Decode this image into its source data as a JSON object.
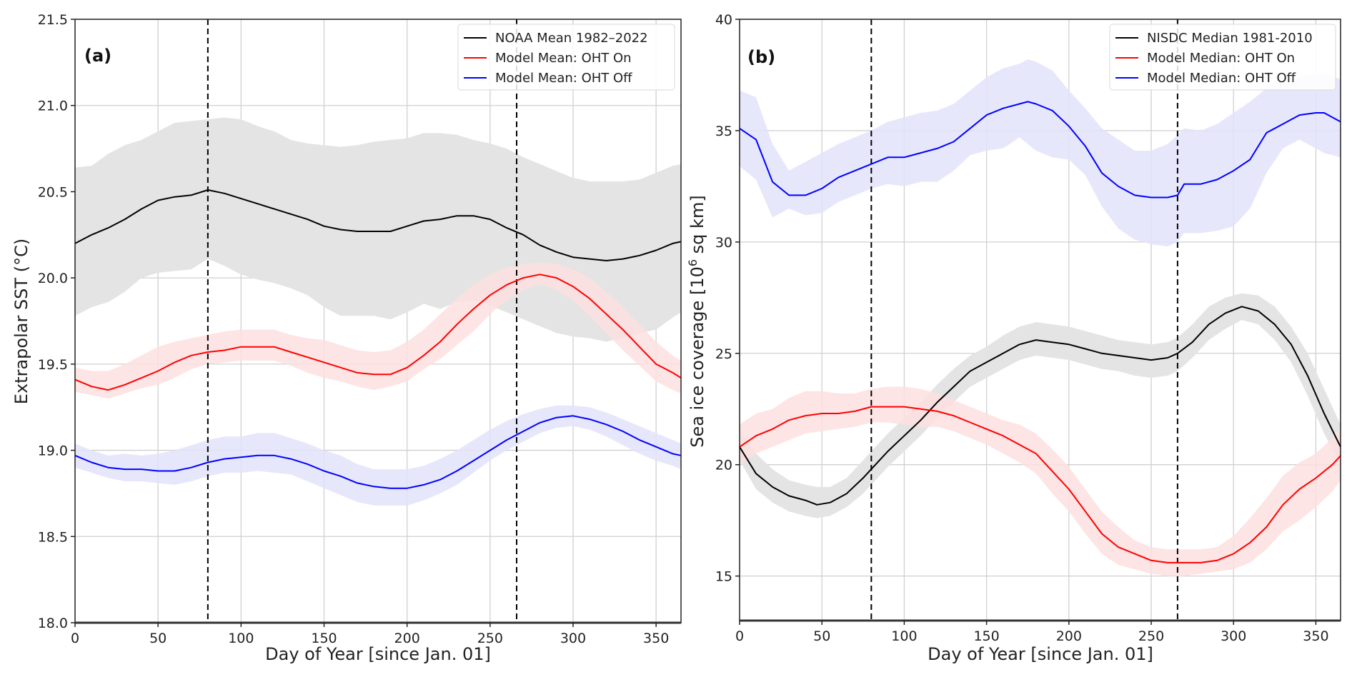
{
  "chart_data": [
    {
      "type": "line",
      "panel_label": "(a)",
      "title": "",
      "xlabel": "Day of Year [since Jan. 01]",
      "ylabel": "Extrapolar SST (°C)",
      "xlim": [
        0,
        365
      ],
      "ylim": [
        18.0,
        21.5
      ],
      "xticks": [
        0,
        50,
        100,
        150,
        200,
        250,
        300,
        350
      ],
      "yticks": [
        18.0,
        18.5,
        19.0,
        19.5,
        20.0,
        20.5,
        21.0,
        21.5
      ],
      "ytick_labels": [
        "18.0",
        "18.5",
        "19.0",
        "19.5",
        "20.0",
        "20.5",
        "21.0",
        "21.5"
      ],
      "grid": true,
      "vlines": [
        80,
        266
      ],
      "legend_position": "top-right",
      "series": [
        {
          "name": "NOAA Mean 1982–2022",
          "color": "#000000",
          "band_color": "#e4e4e4",
          "x": [
            0,
            10,
            20,
            30,
            40,
            50,
            60,
            70,
            80,
            90,
            100,
            110,
            120,
            130,
            140,
            150,
            160,
            170,
            180,
            190,
            200,
            210,
            220,
            230,
            240,
            250,
            260,
            270,
            280,
            290,
            300,
            310,
            320,
            330,
            340,
            350,
            360,
            365
          ],
          "values": [
            20.2,
            20.25,
            20.29,
            20.34,
            20.4,
            20.45,
            20.47,
            20.48,
            20.51,
            20.49,
            20.46,
            20.43,
            20.4,
            20.37,
            20.34,
            20.3,
            20.28,
            20.27,
            20.27,
            20.27,
            20.3,
            20.33,
            20.34,
            20.36,
            20.36,
            20.34,
            20.29,
            20.25,
            20.19,
            20.15,
            20.12,
            20.11,
            20.1,
            20.11,
            20.13,
            20.16,
            20.2,
            20.21
          ],
          "upper": [
            20.64,
            20.65,
            20.72,
            20.77,
            20.8,
            20.85,
            20.9,
            20.91,
            20.92,
            20.93,
            20.92,
            20.88,
            20.85,
            20.8,
            20.78,
            20.77,
            20.76,
            20.77,
            20.79,
            20.8,
            20.81,
            20.84,
            20.84,
            20.83,
            20.8,
            20.78,
            20.75,
            20.7,
            20.66,
            20.62,
            20.58,
            20.56,
            20.56,
            20.56,
            20.57,
            20.61,
            20.65,
            20.66
          ],
          "lower": [
            19.78,
            19.83,
            19.86,
            19.92,
            20.0,
            20.03,
            20.04,
            20.05,
            20.11,
            20.07,
            20.02,
            19.99,
            19.97,
            19.94,
            19.9,
            19.83,
            19.78,
            19.78,
            19.78,
            19.76,
            19.8,
            19.85,
            19.82,
            19.86,
            19.87,
            19.84,
            19.8,
            19.76,
            19.72,
            19.68,
            19.66,
            19.65,
            19.63,
            19.65,
            19.68,
            19.7,
            19.77,
            19.8
          ]
        },
        {
          "name": "Model Mean: OHT On",
          "color": "#ff0000",
          "band_color": "#fde0e0",
          "x": [
            0,
            10,
            20,
            30,
            40,
            50,
            60,
            70,
            80,
            90,
            100,
            110,
            120,
            130,
            140,
            150,
            160,
            170,
            180,
            190,
            200,
            210,
            220,
            230,
            240,
            250,
            260,
            270,
            280,
            290,
            300,
            310,
            320,
            330,
            340,
            350,
            360,
            365
          ],
          "values": [
            19.41,
            19.37,
            19.35,
            19.38,
            19.42,
            19.46,
            19.51,
            19.55,
            19.57,
            19.58,
            19.6,
            19.6,
            19.6,
            19.57,
            19.54,
            19.51,
            19.48,
            19.45,
            19.44,
            19.44,
            19.48,
            19.55,
            19.63,
            19.73,
            19.82,
            19.9,
            19.96,
            20.0,
            20.02,
            20.0,
            19.95,
            19.88,
            19.79,
            19.7,
            19.6,
            19.5,
            19.45,
            19.42
          ],
          "upper": [
            19.48,
            19.46,
            19.46,
            19.5,
            19.55,
            19.6,
            19.63,
            19.65,
            19.67,
            19.69,
            19.7,
            19.7,
            19.7,
            19.67,
            19.65,
            19.64,
            19.61,
            19.58,
            19.57,
            19.58,
            19.63,
            19.7,
            19.79,
            19.88,
            19.96,
            20.02,
            20.06,
            20.08,
            20.09,
            20.08,
            20.05,
            20.0,
            19.92,
            19.83,
            19.73,
            19.63,
            19.55,
            19.52
          ],
          "lower": [
            19.34,
            19.32,
            19.3,
            19.33,
            19.36,
            19.38,
            19.42,
            19.47,
            19.5,
            19.51,
            19.52,
            19.52,
            19.52,
            19.49,
            19.45,
            19.42,
            19.4,
            19.37,
            19.35,
            19.37,
            19.4,
            19.47,
            19.53,
            19.61,
            19.69,
            19.79,
            19.87,
            19.93,
            19.96,
            19.93,
            19.87,
            19.78,
            19.68,
            19.58,
            19.49,
            19.4,
            19.35,
            19.33
          ]
        },
        {
          "name": "Model Mean: OHT Off",
          "color": "#0000ff",
          "band_color": "#e3e3fc",
          "x": [
            0,
            10,
            20,
            30,
            40,
            50,
            60,
            70,
            80,
            90,
            100,
            110,
            120,
            130,
            140,
            150,
            160,
            170,
            180,
            190,
            200,
            210,
            220,
            230,
            240,
            250,
            260,
            270,
            280,
            290,
            300,
            310,
            320,
            330,
            340,
            350,
            360,
            365
          ],
          "values": [
            18.97,
            18.93,
            18.9,
            18.89,
            18.89,
            18.88,
            18.88,
            18.9,
            18.93,
            18.95,
            18.96,
            18.97,
            18.97,
            18.95,
            18.92,
            18.88,
            18.85,
            18.81,
            18.79,
            18.78,
            18.78,
            18.8,
            18.83,
            18.88,
            18.94,
            19.0,
            19.06,
            19.11,
            19.16,
            19.19,
            19.2,
            19.18,
            19.15,
            19.11,
            19.06,
            19.02,
            18.98,
            18.97
          ],
          "upper": [
            19.04,
            19.0,
            18.97,
            18.98,
            18.97,
            18.98,
            19.0,
            19.03,
            19.06,
            19.08,
            19.08,
            19.1,
            19.1,
            19.07,
            19.04,
            19.0,
            18.97,
            18.92,
            18.89,
            18.89,
            18.89,
            18.91,
            18.95,
            19.0,
            19.06,
            19.12,
            19.17,
            19.21,
            19.24,
            19.26,
            19.26,
            19.25,
            19.22,
            19.18,
            19.14,
            19.1,
            19.06,
            19.04
          ],
          "lower": [
            18.9,
            18.87,
            18.84,
            18.82,
            18.82,
            18.81,
            18.8,
            18.82,
            18.85,
            18.87,
            18.87,
            18.88,
            18.87,
            18.86,
            18.82,
            18.78,
            18.74,
            18.7,
            18.68,
            18.68,
            18.68,
            18.71,
            18.75,
            18.8,
            18.87,
            18.94,
            19.0,
            19.05,
            19.1,
            19.13,
            19.14,
            19.12,
            19.08,
            19.03,
            18.98,
            18.94,
            18.91,
            18.89
          ]
        }
      ]
    },
    {
      "type": "line",
      "panel_label": "(b)",
      "title": "",
      "xlabel": "Day of Year [since Jan. 01]",
      "ylabel_main": "Sea ice coverage [10",
      "ylabel_sup": "6",
      "ylabel_tail": " sq km]",
      "xlim": [
        0,
        365
      ],
      "ylim": [
        13,
        40
      ],
      "xticks": [
        0,
        50,
        100,
        150,
        200,
        250,
        300,
        350
      ],
      "yticks": [
        15,
        20,
        25,
        30,
        35,
        40
      ],
      "ytick_labels": [
        "15",
        "20",
        "25",
        "30",
        "35",
        "40"
      ],
      "grid": true,
      "vlines": [
        80,
        266
      ],
      "legend_position": "top-right",
      "series": [
        {
          "name": "NISDC Median 1981-2010",
          "color": "#000000",
          "band_color": "#e4e4e4",
          "x": [
            0,
            10,
            20,
            30,
            40,
            47,
            55,
            65,
            75,
            80,
            90,
            100,
            110,
            120,
            130,
            140,
            150,
            160,
            170,
            180,
            190,
            200,
            210,
            220,
            230,
            240,
            250,
            260,
            266,
            275,
            285,
            295,
            305,
            315,
            325,
            335,
            345,
            355,
            365
          ],
          "values": [
            20.8,
            19.6,
            19.0,
            18.6,
            18.4,
            18.2,
            18.3,
            18.7,
            19.4,
            19.8,
            20.6,
            21.3,
            22.0,
            22.8,
            23.5,
            24.2,
            24.6,
            25.0,
            25.4,
            25.6,
            25.5,
            25.4,
            25.2,
            25.0,
            24.9,
            24.8,
            24.7,
            24.8,
            25.0,
            25.5,
            26.3,
            26.8,
            27.1,
            26.9,
            26.3,
            25.4,
            24.0,
            22.3,
            20.8
          ],
          "upper": [
            21.5,
            20.5,
            19.8,
            19.3,
            19.1,
            19.0,
            19.0,
            19.4,
            20.2,
            20.6,
            21.4,
            22.1,
            22.8,
            23.6,
            24.3,
            24.9,
            25.3,
            25.8,
            26.2,
            26.4,
            26.3,
            26.2,
            26.0,
            25.8,
            25.6,
            25.5,
            25.4,
            25.5,
            25.7,
            26.3,
            27.1,
            27.5,
            27.7,
            27.6,
            27.1,
            26.2,
            25.0,
            23.4,
            21.8
          ],
          "lower": [
            20.2,
            18.9,
            18.3,
            17.9,
            17.7,
            17.6,
            17.7,
            18.1,
            18.7,
            19.1,
            19.9,
            20.6,
            21.3,
            22.1,
            22.8,
            23.5,
            23.9,
            24.3,
            24.7,
            24.9,
            24.8,
            24.7,
            24.5,
            24.3,
            24.2,
            24.0,
            23.9,
            24.0,
            24.2,
            24.8,
            25.6,
            26.1,
            26.5,
            26.3,
            25.6,
            24.6,
            23.1,
            21.4,
            20.0
          ]
        },
        {
          "name": "Model Median: OHT On",
          "color": "#ff0000",
          "band_color": "#fde0e0",
          "x": [
            0,
            10,
            20,
            30,
            40,
            50,
            60,
            70,
            80,
            90,
            100,
            110,
            120,
            130,
            140,
            150,
            160,
            170,
            180,
            190,
            200,
            210,
            220,
            230,
            240,
            250,
            260,
            270,
            280,
            290,
            300,
            310,
            320,
            330,
            340,
            350,
            360,
            365
          ],
          "values": [
            20.8,
            21.3,
            21.6,
            22.0,
            22.2,
            22.3,
            22.3,
            22.4,
            22.6,
            22.6,
            22.6,
            22.5,
            22.4,
            22.2,
            21.9,
            21.6,
            21.3,
            20.9,
            20.5,
            19.7,
            18.9,
            17.9,
            16.9,
            16.3,
            16.0,
            15.7,
            15.6,
            15.6,
            15.6,
            15.7,
            16.0,
            16.5,
            17.2,
            18.2,
            18.9,
            19.4,
            20.0,
            20.4
          ],
          "upper": [
            21.8,
            22.3,
            22.5,
            23.0,
            23.3,
            23.3,
            23.2,
            23.2,
            23.4,
            23.5,
            23.5,
            23.4,
            23.2,
            22.9,
            22.6,
            22.3,
            22.0,
            21.8,
            21.4,
            20.7,
            19.9,
            18.9,
            17.9,
            17.2,
            16.6,
            16.3,
            16.2,
            16.2,
            16.2,
            16.3,
            16.8,
            17.6,
            18.5,
            19.5,
            20.1,
            20.5,
            21.2,
            21.7
          ],
          "lower": [
            20.0,
            20.5,
            20.8,
            21.1,
            21.4,
            21.5,
            21.6,
            21.7,
            21.9,
            21.9,
            21.8,
            21.7,
            21.7,
            21.5,
            21.2,
            20.9,
            20.5,
            20.1,
            19.6,
            18.7,
            17.9,
            16.9,
            16.0,
            15.5,
            15.3,
            15.1,
            15.0,
            15.0,
            15.1,
            15.2,
            15.3,
            15.6,
            16.2,
            17.0,
            17.5,
            18.1,
            18.8,
            19.3
          ]
        },
        {
          "name": "Model Median: OHT Off",
          "color": "#0000ff",
          "band_color": "#e3e3fc",
          "x": [
            0,
            10,
            20,
            30,
            40,
            50,
            60,
            70,
            80,
            90,
            100,
            110,
            120,
            130,
            140,
            150,
            160,
            170,
            175,
            180,
            190,
            200,
            210,
            220,
            230,
            240,
            250,
            260,
            266,
            270,
            280,
            290,
            300,
            310,
            320,
            330,
            340,
            350,
            355,
            365
          ],
          "values": [
            35.1,
            34.6,
            32.7,
            32.1,
            32.1,
            32.4,
            32.9,
            33.2,
            33.5,
            33.8,
            33.8,
            34.0,
            34.2,
            34.5,
            35.1,
            35.7,
            36.0,
            36.2,
            36.3,
            36.2,
            35.9,
            35.2,
            34.3,
            33.1,
            32.5,
            32.1,
            32.0,
            32.0,
            32.1,
            32.6,
            32.6,
            32.8,
            33.2,
            33.7,
            34.9,
            35.3,
            35.7,
            35.8,
            35.8,
            35.4
          ],
          "upper": [
            36.8,
            36.5,
            34.4,
            33.2,
            33.6,
            34.0,
            34.4,
            34.7,
            35.0,
            35.4,
            35.6,
            35.8,
            35.9,
            36.2,
            36.8,
            37.4,
            37.8,
            38.0,
            38.2,
            38.1,
            37.7,
            36.8,
            36.0,
            35.1,
            34.6,
            34.1,
            34.1,
            34.4,
            34.8,
            35.1,
            35.0,
            35.3,
            35.8,
            36.3,
            36.9,
            37.3,
            37.4,
            37.6,
            37.6,
            37.3
          ],
          "lower": [
            33.4,
            32.8,
            31.1,
            31.5,
            31.2,
            31.3,
            31.8,
            32.1,
            32.4,
            32.6,
            32.5,
            32.7,
            32.7,
            33.2,
            33.9,
            34.1,
            34.2,
            34.7,
            34.4,
            34.1,
            33.8,
            33.7,
            33.0,
            31.6,
            30.6,
            30.1,
            29.9,
            29.8,
            30.0,
            30.4,
            30.4,
            30.5,
            30.7,
            31.5,
            33.1,
            34.2,
            34.6,
            34.2,
            34.0,
            33.8
          ]
        }
      ]
    }
  ]
}
